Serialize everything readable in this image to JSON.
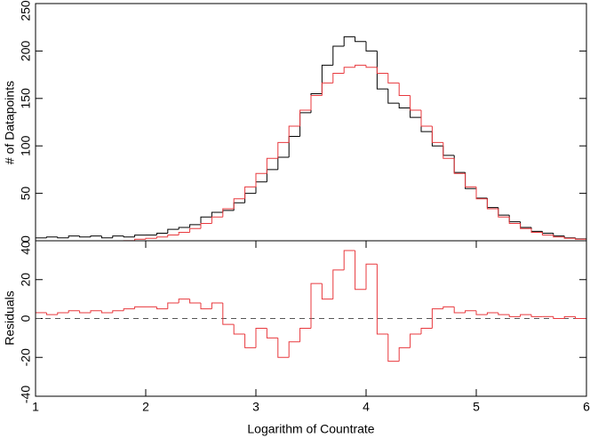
{
  "chart_data": [
    {
      "type": "histogram",
      "ylabel": "# of Datapoints",
      "bins": [
        1.0,
        1.1,
        1.2,
        1.3,
        1.4,
        1.5,
        1.6,
        1.7,
        1.8,
        1.9,
        2.0,
        2.1,
        2.2,
        2.3,
        2.4,
        2.5,
        2.6,
        2.7,
        2.8,
        2.9,
        3.0,
        3.1,
        3.2,
        3.3,
        3.4,
        3.5,
        3.6,
        3.7,
        3.8,
        3.9,
        4.0,
        4.1,
        4.2,
        4.3,
        4.4,
        4.5,
        4.6,
        4.7,
        4.8,
        4.9,
        5.0,
        5.1,
        5.2,
        5.3,
        5.4,
        5.5,
        5.6,
        5.7,
        5.8,
        5.9,
        6.0
      ],
      "series": [
        {
          "color": "#000000",
          "values": [
            3,
            4,
            3,
            5,
            4,
            5,
            3,
            5,
            4,
            6,
            6,
            8,
            12,
            14,
            17,
            25,
            30,
            32,
            40,
            50,
            62,
            75,
            88,
            110,
            135,
            155,
            185,
            205,
            215,
            210,
            200,
            160,
            145,
            140,
            130,
            115,
            100,
            90,
            72,
            55,
            45,
            35,
            27,
            20,
            14,
            10,
            8,
            5,
            3,
            2
          ]
        },
        {
          "color": "#e8383d",
          "values": [
            0,
            0,
            0,
            0,
            0,
            0,
            0,
            0,
            0.1,
            1.6,
            2.6,
            4.0,
            6.1,
            8.9,
            12.9,
            18.2,
            25.0,
            33.7,
            44.2,
            56.8,
            70.9,
            86.8,
            103.6,
            120.8,
            137.6,
            153.1,
            166.3,
            176.5,
            182.8,
            185,
            182.8,
            176.5,
            166.3,
            153.1,
            137.6,
            120.8,
            103.6,
            86.8,
            70.9,
            56.8,
            44.2,
            33.7,
            25.0,
            18.2,
            12.9,
            8.9,
            6.1,
            4.0,
            2.6,
            1.6
          ]
        }
      ],
      "xlim": [
        1,
        6
      ],
      "ylim": [
        0,
        250
      ],
      "yticks": [
        0,
        50,
        100,
        150,
        200,
        250
      ]
    },
    {
      "type": "histogram",
      "ylabel": "Residuals",
      "xlabel": "Logarithm of Countrate",
      "bins": [
        1.0,
        1.1,
        1.2,
        1.3,
        1.4,
        1.5,
        1.6,
        1.7,
        1.8,
        1.9,
        2.0,
        2.1,
        2.2,
        2.3,
        2.4,
        2.5,
        2.6,
        2.7,
        2.8,
        2.9,
        3.0,
        3.1,
        3.2,
        3.3,
        3.4,
        3.5,
        3.6,
        3.7,
        3.8,
        3.9,
        4.0,
        4.1,
        4.2,
        4.3,
        4.4,
        4.5,
        4.6,
        4.7,
        4.8,
        4.9,
        5.0,
        5.1,
        5.2,
        5.3,
        5.4,
        5.5,
        5.6,
        5.7,
        5.8,
        5.9,
        6.0
      ],
      "series": [
        {
          "color": "#e8383d",
          "values": [
            3,
            2,
            3,
            4,
            3,
            4,
            3,
            4,
            5,
            6,
            6,
            5,
            8,
            10,
            8,
            5,
            8,
            -3,
            -8,
            -15,
            -5,
            -10,
            -20,
            -12,
            -5,
            18,
            10,
            25,
            35,
            15,
            28,
            -8,
            -22,
            -15,
            -8,
            -5,
            5,
            6,
            3,
            4,
            2,
            3,
            2,
            1,
            2,
            1,
            1,
            0,
            1,
            0
          ]
        }
      ],
      "hline": 0,
      "xlim": [
        1,
        6
      ],
      "xticks": [
        1,
        2,
        3,
        4,
        5,
        6
      ],
      "ylim": [
        -40,
        40
      ],
      "yticks": [
        -40,
        -20,
        0,
        20,
        40
      ]
    }
  ]
}
